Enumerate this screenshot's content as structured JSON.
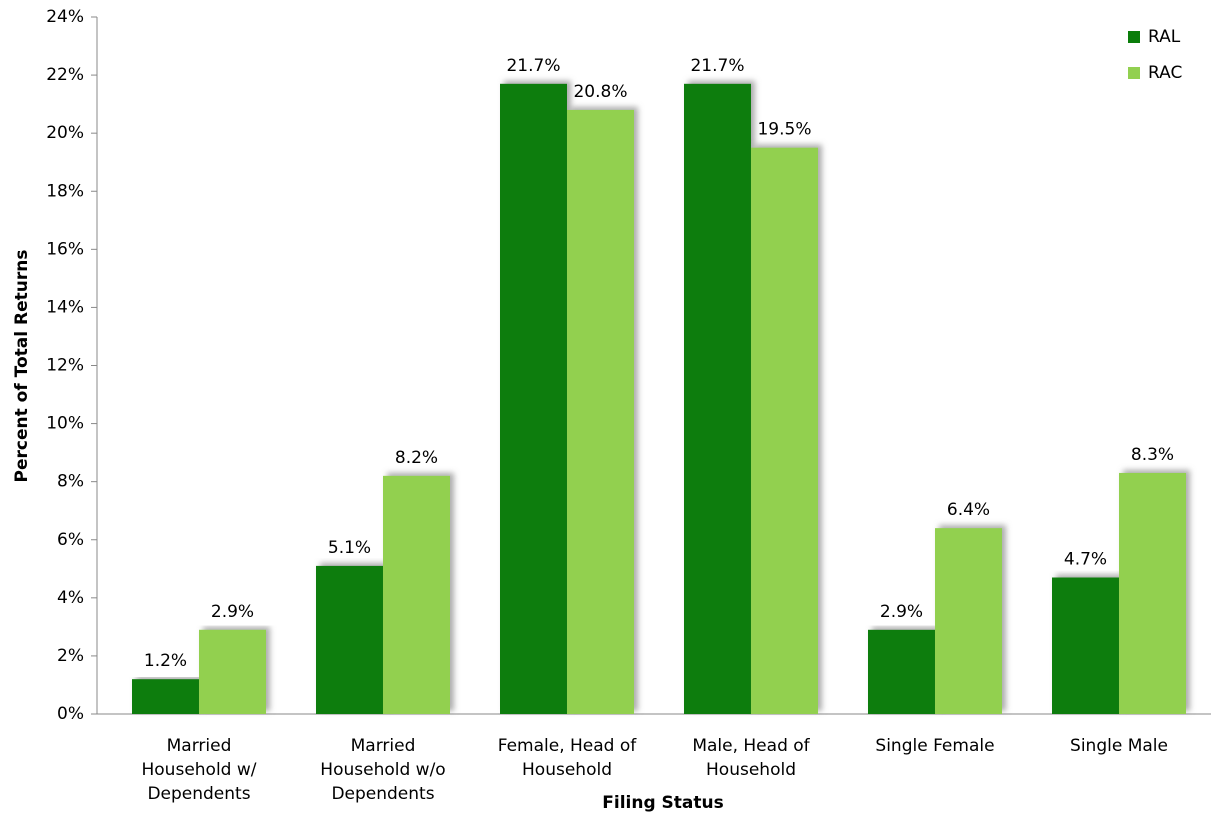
{
  "chart_data": {
    "type": "bar",
    "x_label": "Filing Status",
    "y_label": "Percent of Total Returns",
    "categories": [
      "Married\nHousehold w/\nDependents",
      "Married\nHousehold w/o\nDependents",
      "Female, Head of\nHousehold",
      "Male, Head of\nHousehold",
      "Single Female",
      "Single Male"
    ],
    "series": [
      {
        "name": "RAL",
        "color": "#0a7d0a",
        "values": [
          1.2,
          5.1,
          21.7,
          21.7,
          2.9,
          4.7
        ],
        "value_labels": [
          "1.2%",
          "5.1%",
          "21.7%",
          "21.7%",
          "2.9%",
          "4.7%"
        ]
      },
      {
        "name": "RAC",
        "color": "#92d050",
        "values": [
          2.9,
          8.2,
          20.8,
          19.5,
          6.4,
          8.3
        ],
        "value_labels": [
          "2.9%",
          "8.2%",
          "20.8%",
          "19.5%",
          "6.4%",
          "8.3%"
        ]
      }
    ],
    "ylim": [
      0,
      24
    ],
    "yticks": [
      {
        "value": 0,
        "label": "0%"
      },
      {
        "value": 2,
        "label": "2%"
      },
      {
        "value": 4,
        "label": "4%"
      },
      {
        "value": 6,
        "label": "6%"
      },
      {
        "value": 8,
        "label": "8%"
      },
      {
        "value": 10,
        "label": "10%"
      },
      {
        "value": 12,
        "label": "12%"
      },
      {
        "value": 14,
        "label": "14%"
      },
      {
        "value": 16,
        "label": "16%"
      },
      {
        "value": 18,
        "label": "18%"
      },
      {
        "value": 20,
        "label": "20%"
      },
      {
        "value": 22,
        "label": "22%"
      },
      {
        "value": 24,
        "label": "24%"
      }
    ],
    "grid": false,
    "legend": "top-right"
  }
}
